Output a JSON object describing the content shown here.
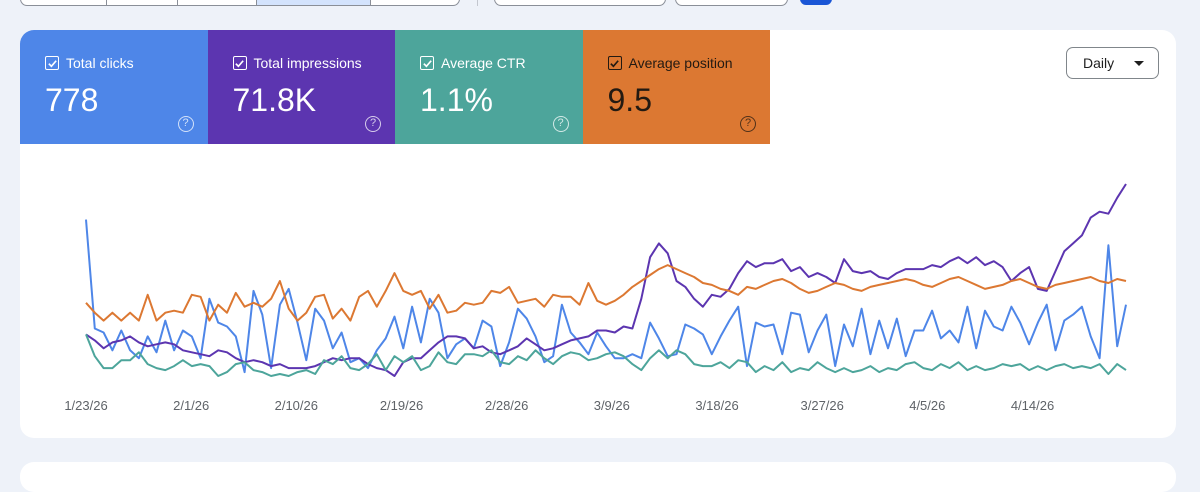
{
  "metrics": [
    {
      "name": "Total clicks",
      "value": "778",
      "color": "#4e86e8"
    },
    {
      "name": "Total impressions",
      "value": "71.8K",
      "color": "#5c35b0"
    },
    {
      "name": "Average CTR",
      "value": "1.1%",
      "color": "#4da59b"
    },
    {
      "name": "Average position",
      "value": "9.5",
      "color": "#dc7832"
    }
  ],
  "help_symbol": "?",
  "granularity": {
    "label": "Daily"
  },
  "chart_data": {
    "type": "line",
    "x_ticks": [
      "1/23/26",
      "2/1/26",
      "2/10/26",
      "2/19/26",
      "2/28/26",
      "3/9/26",
      "3/18/26",
      "3/27/26",
      "4/5/26",
      "4/14/26"
    ],
    "x_range": [
      "2026-01-23",
      "2026-04-22"
    ],
    "y_axis_visible": false,
    "legend": "metric tiles above chart",
    "grid": false,
    "series": [
      {
        "color": "#4e86e8",
        "values": [
          80,
          25,
          23,
          14,
          24,
          14,
          10,
          21,
          13,
          29,
          14,
          24,
          21,
          10,
          40,
          28,
          26,
          21,
          3,
          44,
          32,
          5,
          37,
          45,
          28,
          9,
          35,
          29,
          15,
          23,
          8,
          10,
          5,
          14,
          20,
          31,
          15,
          36,
          18,
          40,
          33,
          10,
          17,
          20,
          15,
          29,
          26,
          6,
          18,
          35,
          30,
          21,
          8,
          11,
          37,
          23,
          18,
          12,
          23,
          16,
          10,
          10,
          12,
          10,
          28,
          20,
          11,
          12,
          27,
          25,
          22,
          12,
          21,
          29,
          36,
          6,
          28,
          26,
          27,
          12,
          33,
          32,
          13,
          24,
          32,
          6,
          27,
          16,
          35,
          12,
          29,
          15,
          30,
          11,
          24,
          24,
          34,
          20,
          24,
          18,
          36,
          15,
          34,
          26,
          24,
          36,
          28,
          17,
          28,
          37,
          14,
          29,
          32,
          36,
          21,
          10,
          67,
          16,
          37
        ]
      },
      {
        "color": "#5c35b0",
        "values": [
          22,
          19,
          15,
          18,
          19,
          21,
          18,
          16,
          17,
          18,
          17,
          14,
          13,
          12,
          11,
          14,
          13,
          10,
          8,
          9,
          8,
          6,
          7,
          5,
          5,
          5,
          6,
          8,
          10,
          9,
          10,
          10,
          7,
          5,
          4,
          1,
          8,
          10,
          10,
          14,
          18,
          21,
          21,
          20,
          15,
          16,
          13,
          12,
          14,
          16,
          20,
          17,
          14,
          15,
          17,
          19,
          20,
          21,
          24,
          24,
          23,
          26,
          25,
          40,
          61,
          68,
          63,
          49,
          46,
          40,
          36,
          42,
          41,
          45,
          53,
          59,
          56,
          58,
          58,
          60,
          54,
          56,
          51,
          53,
          51,
          48,
          60,
          54,
          53,
          54,
          51,
          50,
          53,
          55,
          55,
          55,
          57,
          56,
          59,
          61,
          58,
          61,
          57,
          59,
          56,
          49,
          53,
          56,
          45,
          44,
          54,
          64,
          68,
          72,
          81,
          84,
          83,
          91,
          98
        ]
      },
      {
        "color": "#4da59b",
        "values": [
          22,
          11,
          5,
          5,
          9,
          9,
          13,
          7,
          5,
          4,
          6,
          9,
          6,
          7,
          6,
          1,
          3,
          7,
          8,
          4,
          3,
          1,
          2,
          1,
          3,
          4,
          2,
          9,
          7,
          11,
          5,
          4,
          7,
          12,
          4,
          11,
          8,
          11,
          4,
          6,
          13,
          8,
          7,
          12,
          12,
          11,
          14,
          8,
          7,
          11,
          9,
          14,
          10,
          7,
          11,
          13,
          12,
          9,
          10,
          12,
          13,
          11,
          7,
          4,
          10,
          14,
          10,
          14,
          12,
          7,
          6,
          6,
          8,
          5,
          9,
          8,
          3,
          6,
          4,
          8,
          3,
          5,
          4,
          8,
          5,
          3,
          5,
          3,
          4,
          6,
          3,
          5,
          4,
          7,
          8,
          5,
          4,
          7,
          5,
          8,
          4,
          6,
          4,
          5,
          7,
          6,
          7,
          4,
          6,
          4,
          6,
          7,
          5,
          6,
          5,
          7,
          2,
          7,
          4
        ]
      },
      {
        "color": "#dc7832",
        "values": [
          38,
          33,
          29,
          33,
          29,
          33,
          29,
          42,
          29,
          33,
          34,
          33,
          42,
          41,
          29,
          37,
          33,
          43,
          36,
          38,
          36,
          40,
          49,
          35,
          29,
          33,
          41,
          42,
          30,
          35,
          29,
          41,
          44,
          36,
          44,
          53,
          44,
          42,
          44,
          35,
          42,
          33,
          34,
          38,
          37,
          38,
          44,
          43,
          46,
          38,
          39,
          40,
          36,
          42,
          41,
          41,
          37,
          48,
          39,
          37,
          39,
          42,
          46,
          49,
          52,
          55,
          57,
          55,
          53,
          51,
          48,
          47,
          45,
          44,
          42,
          46,
          45,
          47,
          49,
          50,
          48,
          45,
          43,
          44,
          46,
          48,
          47,
          45,
          44,
          46,
          47,
          48,
          49,
          50,
          49,
          47,
          46,
          48,
          50,
          51,
          49,
          47,
          45,
          46,
          47,
          49,
          50,
          48,
          46,
          45,
          47,
          48,
          49,
          50,
          51,
          49,
          48,
          50,
          49
        ]
      }
    ]
  }
}
